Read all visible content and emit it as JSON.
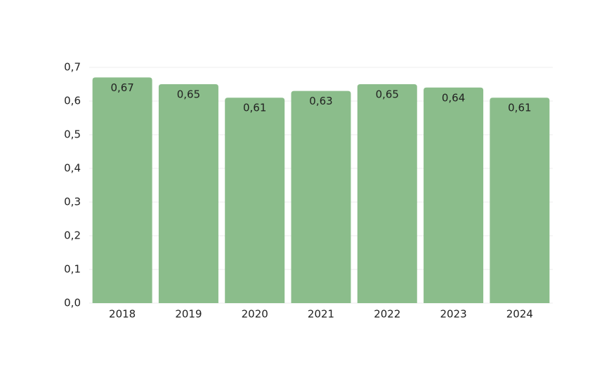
{
  "chart_data": {
    "type": "bar",
    "categories": [
      "2018",
      "2019",
      "2020",
      "2021",
      "2022",
      "2023",
      "2024"
    ],
    "values": [
      0.67,
      0.65,
      0.61,
      0.63,
      0.65,
      0.64,
      0.61
    ],
    "value_labels": [
      "0,67",
      "0,65",
      "0,61",
      "0,63",
      "0,65",
      "0,64",
      "0,61"
    ],
    "color": "#8bbd8b",
    "ylim": [
      0,
      0.7
    ],
    "yticks": [
      {
        "value": 0,
        "label": "0,0"
      },
      {
        "value": 0.1,
        "label": "0,1"
      },
      {
        "value": 0.2,
        "label": "0,2"
      },
      {
        "value": 0.3,
        "label": "0,3"
      },
      {
        "value": 0.4,
        "label": "0,4"
      },
      {
        "value": 0.5,
        "label": "0,5"
      },
      {
        "value": 0.6,
        "label": "0,6"
      },
      {
        "value": 0.7,
        "label": "0,7"
      }
    ],
    "grid": true
  }
}
